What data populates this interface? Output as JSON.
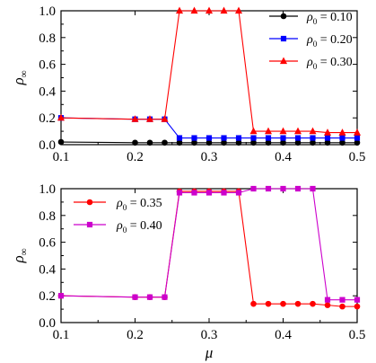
{
  "chart_data": [
    {
      "type": "line",
      "title": "",
      "xlabel": "",
      "ylabel": "ρ∞",
      "xlim": [
        0.1,
        0.5
      ],
      "ylim": [
        0.0,
        1.0
      ],
      "xticks": [
        "0.1",
        "0.2",
        "0.3",
        "0.4",
        "0.5"
      ],
      "yticks": [
        "0.0",
        "0.2",
        "0.4",
        "0.6",
        "0.8",
        "1.0"
      ],
      "legend_position": "top-right",
      "x": [
        0.1,
        0.2,
        0.22,
        0.24,
        0.26,
        0.28,
        0.3,
        0.32,
        0.34,
        0.36,
        0.38,
        0.4,
        0.42,
        0.44,
        0.46,
        0.48,
        0.5
      ],
      "series": [
        {
          "name": "ρ0 = 0.10",
          "color": "#000000",
          "marker": "circle",
          "values": [
            0.02,
            0.015,
            0.015,
            0.015,
            0.015,
            0.015,
            0.015,
            0.015,
            0.015,
            0.015,
            0.015,
            0.015,
            0.015,
            0.015,
            0.015,
            0.015,
            0.015
          ]
        },
        {
          "name": "ρ0 = 0.20",
          "color": "#0000ff",
          "marker": "square",
          "values": [
            0.2,
            0.19,
            0.19,
            0.19,
            0.05,
            0.05,
            0.05,
            0.05,
            0.05,
            0.05,
            0.05,
            0.05,
            0.05,
            0.05,
            0.05,
            0.05,
            0.05
          ]
        },
        {
          "name": "ρ0 = 0.30",
          "color": "#ff0000",
          "marker": "triangle",
          "values": [
            0.2,
            0.19,
            0.19,
            0.19,
            1.0,
            1.0,
            1.0,
            1.0,
            1.0,
            0.1,
            0.1,
            0.1,
            0.1,
            0.1,
            0.09,
            0.09,
            0.09
          ]
        }
      ]
    },
    {
      "type": "line",
      "title": "",
      "xlabel": "μ",
      "ylabel": "ρ∞",
      "xlim": [
        0.1,
        0.5
      ],
      "ylim": [
        0.0,
        1.0
      ],
      "xticks": [
        "0.1",
        "0.2",
        "0.3",
        "0.4",
        "0.5"
      ],
      "yticks": [
        "0.0",
        "0.2",
        "0.4",
        "0.6",
        "0.8",
        "1.0"
      ],
      "legend_position": "top-left",
      "x": [
        0.1,
        0.2,
        0.22,
        0.24,
        0.26,
        0.28,
        0.3,
        0.32,
        0.34,
        0.36,
        0.38,
        0.4,
        0.42,
        0.44,
        0.46,
        0.48,
        0.5
      ],
      "series": [
        {
          "name": "ρ0 = 0.35",
          "color": "#ff0000",
          "marker": "circle",
          "values": [
            0.2,
            0.19,
            0.19,
            0.19,
            0.98,
            0.98,
            0.98,
            0.98,
            0.98,
            0.14,
            0.14,
            0.14,
            0.14,
            0.14,
            0.13,
            0.12,
            0.12
          ]
        },
        {
          "name": "ρ0 = 0.40",
          "color": "#cc00cc",
          "marker": "square",
          "values": [
            0.2,
            0.19,
            0.19,
            0.19,
            0.97,
            0.97,
            0.97,
            0.97,
            0.97,
            1.0,
            1.0,
            1.0,
            1.0,
            1.0,
            0.17,
            0.17,
            0.17
          ]
        }
      ]
    }
  ]
}
